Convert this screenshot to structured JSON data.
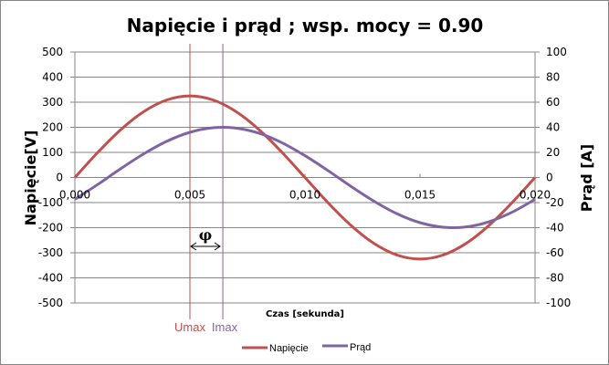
{
  "chart_data": {
    "type": "line",
    "title": "Napięcie i prąd ; wsp. mocy = 0.90",
    "xlabel": "Czas [sekunda]",
    "ylabel": "Napięcie[V]",
    "y2label": "Prąd [A]",
    "xlim": [
      0,
      0.02
    ],
    "ylim": [
      -500,
      500
    ],
    "y2lim": [
      -100,
      100
    ],
    "grid": true,
    "legend_position": "bottom",
    "x_ticks": [
      "0,000",
      "0,005",
      "0,010",
      "0,015",
      "0,020"
    ],
    "x_tick_values": [
      0,
      0.005,
      0.01,
      0.015,
      0.02
    ],
    "y_ticks": [
      "500",
      "400",
      "300",
      "200",
      "100",
      "0",
      "-100",
      "-200",
      "-300",
      "-400",
      "-500"
    ],
    "y2_ticks": [
      "100",
      "80",
      "60",
      "40",
      "20",
      "0",
      "-20",
      "-40",
      "-60",
      "-80",
      "-100"
    ],
    "x": [
      0,
      0.001,
      0.002,
      0.003,
      0.004,
      0.005,
      0.006,
      0.007,
      0.008,
      0.009,
      0.01,
      0.011,
      0.012,
      0.013,
      0.014,
      0.015,
      0.016,
      0.017,
      0.018,
      0.019,
      0.02
    ],
    "series": [
      {
        "name": "Napięcie",
        "axis": "left",
        "color": "#C0504D",
        "values": [
          0,
          100.4,
          191.0,
          262.9,
          309.1,
          325,
          309.1,
          262.9,
          191.0,
          100.4,
          0,
          -100.4,
          -191.0,
          -262.9,
          -309.1,
          -325,
          -309.1,
          -262.9,
          -191.0,
          -100.4,
          0
        ]
      },
      {
        "name": "Prąd",
        "axis": "right",
        "color": "#8064A2",
        "values": [
          -17.4,
          -5.5,
          7.1,
          18.9,
          28.9,
          36.0,
          39.6,
          39.4,
          35.3,
          27.7,
          17.4,
          5.5,
          -7.1,
          -18.9,
          -28.9,
          -36.0,
          -39.6,
          -39.4,
          -35.3,
          -27.7,
          -17.4
        ]
      }
    ],
    "annotations": {
      "umax": {
        "label": "Umax",
        "x": 0.005,
        "color": "#C0504D"
      },
      "imax": {
        "label": "Imax",
        "x": 0.00643,
        "color": "#8064A2"
      },
      "phi": {
        "label": "φ"
      }
    }
  }
}
